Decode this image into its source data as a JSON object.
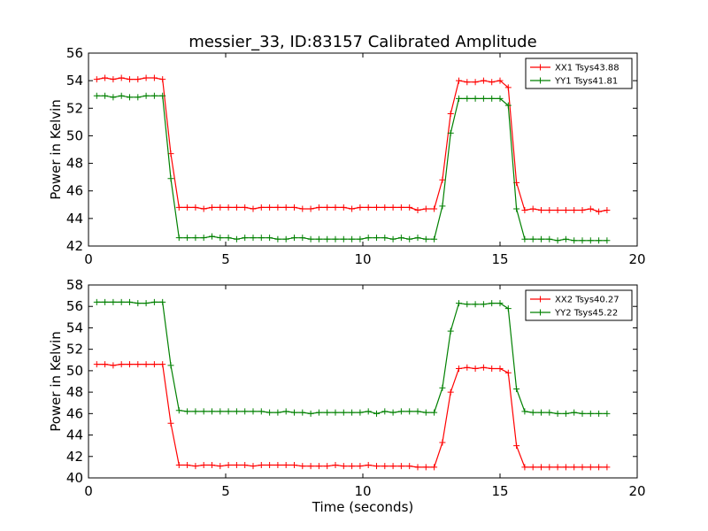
{
  "title": "messier_33, ID:83157 Calibrated Amplitude",
  "xlabel": "Time (seconds)",
  "colors": {
    "red": "#ff0000",
    "green": "#008000"
  },
  "chart_data": [
    {
      "type": "line",
      "title": "messier_33, ID:83157 Calibrated Amplitude",
      "xlabel": "",
      "ylabel": "Power in Kelvin",
      "xlim": [
        0,
        20
      ],
      "ylim": [
        42,
        56
      ],
      "xticks": [
        0,
        5,
        10,
        15,
        20
      ],
      "yticks": [
        42,
        44,
        46,
        48,
        50,
        52,
        54,
        56
      ],
      "legend_position": "top-right",
      "x": [
        0.3,
        0.6,
        0.9,
        1.2,
        1.5,
        1.8,
        2.1,
        2.4,
        2.7,
        3.0,
        3.3,
        3.6,
        3.9,
        4.2,
        4.5,
        4.8,
        5.1,
        5.4,
        5.7,
        6.0,
        6.3,
        6.6,
        6.9,
        7.2,
        7.5,
        7.8,
        8.1,
        8.4,
        8.7,
        9.0,
        9.3,
        9.6,
        9.9,
        10.2,
        10.5,
        10.8,
        11.1,
        11.4,
        11.7,
        12.0,
        12.3,
        12.6,
        12.9,
        13.2,
        13.5,
        13.8,
        14.1,
        14.4,
        14.7,
        15.0,
        15.3,
        15.6,
        15.9,
        16.2,
        16.5,
        16.8,
        17.1,
        17.4,
        17.7,
        18.0,
        18.3,
        18.6,
        18.9
      ],
      "series": [
        {
          "name": "XX1 Tsys43.88",
          "color": "#ff0000",
          "values": [
            54.1,
            54.2,
            54.1,
            54.2,
            54.1,
            54.1,
            54.2,
            54.2,
            54.1,
            48.7,
            44.8,
            44.8,
            44.8,
            44.7,
            44.8,
            44.8,
            44.8,
            44.8,
            44.8,
            44.7,
            44.8,
            44.8,
            44.8,
            44.8,
            44.8,
            44.7,
            44.7,
            44.8,
            44.8,
            44.8,
            44.8,
            44.7,
            44.8,
            44.8,
            44.8,
            44.8,
            44.8,
            44.8,
            44.8,
            44.6,
            44.7,
            44.7,
            46.8,
            51.6,
            54.0,
            53.9,
            53.9,
            54.0,
            53.9,
            54.0,
            53.5,
            46.6,
            44.6,
            44.7,
            44.6,
            44.6,
            44.6,
            44.6,
            44.6,
            44.6,
            44.7,
            44.5,
            44.6
          ]
        },
        {
          "name": "YY1 Tsys41.81",
          "color": "#008000",
          "values": [
            52.9,
            52.9,
            52.8,
            52.9,
            52.8,
            52.8,
            52.9,
            52.9,
            52.9,
            46.9,
            42.6,
            42.6,
            42.6,
            42.6,
            42.7,
            42.6,
            42.6,
            42.5,
            42.6,
            42.6,
            42.6,
            42.6,
            42.5,
            42.5,
            42.6,
            42.6,
            42.5,
            42.5,
            42.5,
            42.5,
            42.5,
            42.5,
            42.5,
            42.6,
            42.6,
            42.6,
            42.5,
            42.6,
            42.5,
            42.6,
            42.5,
            42.5,
            44.9,
            50.2,
            52.7,
            52.7,
            52.7,
            52.7,
            52.7,
            52.7,
            52.2,
            44.7,
            42.5,
            42.5,
            42.5,
            42.5,
            42.4,
            42.5,
            42.4,
            42.4,
            42.4,
            42.4,
            42.4
          ]
        }
      ]
    },
    {
      "type": "line",
      "title": "",
      "xlabel": "Time (seconds)",
      "ylabel": "Power in Kelvin",
      "xlim": [
        0,
        20
      ],
      "ylim": [
        40,
        58
      ],
      "xticks": [
        0,
        5,
        10,
        15,
        20
      ],
      "yticks": [
        40,
        42,
        44,
        46,
        48,
        50,
        52,
        54,
        56,
        58
      ],
      "legend_position": "top-right",
      "x": [
        0.3,
        0.6,
        0.9,
        1.2,
        1.5,
        1.8,
        2.1,
        2.4,
        2.7,
        3.0,
        3.3,
        3.6,
        3.9,
        4.2,
        4.5,
        4.8,
        5.1,
        5.4,
        5.7,
        6.0,
        6.3,
        6.6,
        6.9,
        7.2,
        7.5,
        7.8,
        8.1,
        8.4,
        8.7,
        9.0,
        9.3,
        9.6,
        9.9,
        10.2,
        10.5,
        10.8,
        11.1,
        11.4,
        11.7,
        12.0,
        12.3,
        12.6,
        12.9,
        13.2,
        13.5,
        13.8,
        14.1,
        14.4,
        14.7,
        15.0,
        15.3,
        15.6,
        15.9,
        16.2,
        16.5,
        16.8,
        17.1,
        17.4,
        17.7,
        18.0,
        18.3,
        18.6,
        18.9
      ],
      "series": [
        {
          "name": "XX2 Tsys40.27",
          "color": "#ff0000",
          "values": [
            50.6,
            50.6,
            50.5,
            50.6,
            50.6,
            50.6,
            50.6,
            50.6,
            50.6,
            45.1,
            41.2,
            41.2,
            41.1,
            41.2,
            41.2,
            41.1,
            41.2,
            41.2,
            41.2,
            41.1,
            41.2,
            41.2,
            41.2,
            41.2,
            41.2,
            41.1,
            41.1,
            41.1,
            41.1,
            41.2,
            41.1,
            41.1,
            41.1,
            41.2,
            41.1,
            41.1,
            41.1,
            41.1,
            41.1,
            41.0,
            41.0,
            41.0,
            43.3,
            48.0,
            50.2,
            50.3,
            50.2,
            50.3,
            50.2,
            50.2,
            49.8,
            43.0,
            41.0,
            41.0,
            41.0,
            41.0,
            41.0,
            41.0,
            41.0,
            41.0,
            41.0,
            41.0,
            41.0
          ]
        },
        {
          "name": "YY2 Tsys45.22",
          "color": "#008000",
          "values": [
            56.4,
            56.4,
            56.4,
            56.4,
            56.4,
            56.3,
            56.3,
            56.4,
            56.4,
            50.5,
            46.3,
            46.2,
            46.2,
            46.2,
            46.2,
            46.2,
            46.2,
            46.2,
            46.2,
            46.2,
            46.2,
            46.1,
            46.1,
            46.2,
            46.1,
            46.1,
            46.0,
            46.1,
            46.1,
            46.1,
            46.1,
            46.1,
            46.1,
            46.2,
            46.0,
            46.2,
            46.1,
            46.2,
            46.2,
            46.2,
            46.1,
            46.1,
            48.4,
            53.7,
            56.3,
            56.2,
            56.2,
            56.2,
            56.3,
            56.3,
            55.8,
            48.3,
            46.2,
            46.1,
            46.1,
            46.1,
            46.0,
            46.0,
            46.1,
            46.0,
            46.0,
            46.0,
            46.0
          ]
        }
      ]
    }
  ]
}
